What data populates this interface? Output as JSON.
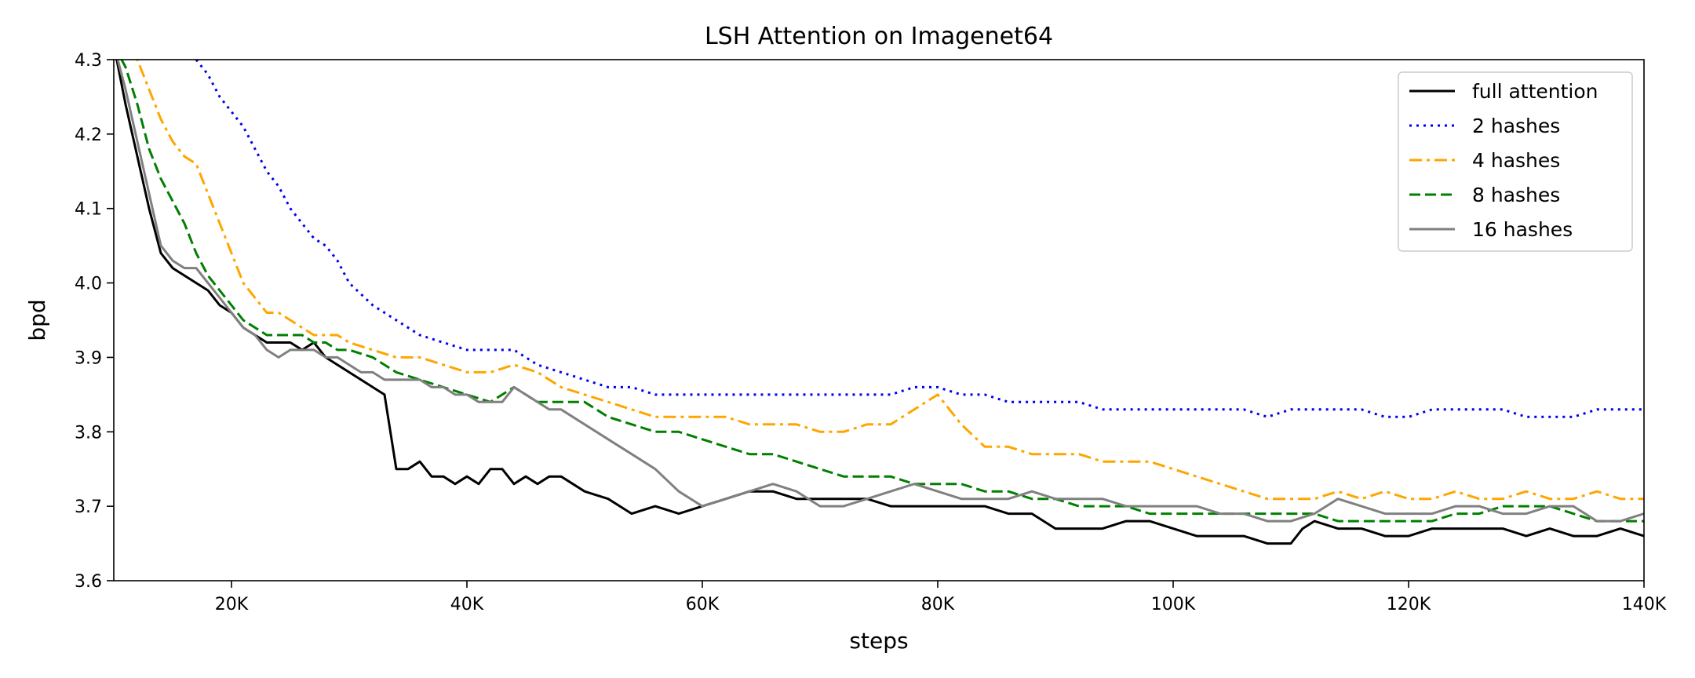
{
  "chart_data": {
    "type": "line",
    "title": "LSH Attention on Imagenet64",
    "xlabel": "steps",
    "ylabel": "bpd",
    "xlim": [
      10000,
      140000
    ],
    "ylim": [
      3.6,
      4.3
    ],
    "xticks": [
      {
        "value": 20000,
        "label": "20K"
      },
      {
        "value": 40000,
        "label": "40K"
      },
      {
        "value": 60000,
        "label": "60K"
      },
      {
        "value": 80000,
        "label": "80K"
      },
      {
        "value": 100000,
        "label": "100K"
      },
      {
        "value": 120000,
        "label": "120K"
      },
      {
        "value": 140000,
        "label": "140K"
      }
    ],
    "yticks": [
      {
        "value": 3.6,
        "label": "3.6"
      },
      {
        "value": 3.7,
        "label": "3.7"
      },
      {
        "value": 3.8,
        "label": "3.8"
      },
      {
        "value": 3.9,
        "label": "3.9"
      },
      {
        "value": 4.0,
        "label": "4.0"
      },
      {
        "value": 4.1,
        "label": "4.1"
      },
      {
        "value": 4.2,
        "label": "4.2"
      },
      {
        "value": 4.3,
        "label": "4.3"
      }
    ],
    "grid": false,
    "legend_position": "top-right",
    "series": [
      {
        "name": "full attention",
        "color": "#000000",
        "style": "solid",
        "x": [
          10000,
          11000,
          12000,
          13000,
          14000,
          15000,
          16000,
          17000,
          18000,
          19000,
          20000,
          21000,
          22000,
          23000,
          24000,
          25000,
          26000,
          27000,
          28000,
          29000,
          30000,
          31000,
          32000,
          33000,
          34000,
          35000,
          36000,
          37000,
          38000,
          39000,
          40000,
          41000,
          42000,
          43000,
          44000,
          45000,
          46000,
          47000,
          48000,
          49000,
          50000,
          52000,
          54000,
          56000,
          58000,
          60000,
          62000,
          64000,
          66000,
          68000,
          70000,
          72000,
          74000,
          76000,
          78000,
          80000,
          82000,
          84000,
          86000,
          88000,
          90000,
          92000,
          94000,
          96000,
          98000,
          100000,
          102000,
          104000,
          106000,
          108000,
          110000,
          111000,
          112000,
          114000,
          116000,
          118000,
          120000,
          122000,
          124000,
          126000,
          128000,
          130000,
          132000,
          134000,
          136000,
          138000,
          140000
        ],
        "values": [
          4.32,
          4.24,
          4.17,
          4.1,
          4.04,
          4.02,
          4.01,
          4.0,
          3.99,
          3.97,
          3.96,
          3.94,
          3.93,
          3.92,
          3.92,
          3.92,
          3.91,
          3.92,
          3.9,
          3.89,
          3.88,
          3.87,
          3.86,
          3.85,
          3.75,
          3.75,
          3.76,
          3.74,
          3.74,
          3.73,
          3.74,
          3.73,
          3.75,
          3.75,
          3.73,
          3.74,
          3.73,
          3.74,
          3.74,
          3.73,
          3.72,
          3.71,
          3.69,
          3.7,
          3.69,
          3.7,
          3.71,
          3.72,
          3.72,
          3.71,
          3.71,
          3.71,
          3.71,
          3.7,
          3.7,
          3.7,
          3.7,
          3.7,
          3.69,
          3.69,
          3.67,
          3.67,
          3.67,
          3.68,
          3.68,
          3.67,
          3.66,
          3.66,
          3.66,
          3.65,
          3.65,
          3.67,
          3.68,
          3.67,
          3.67,
          3.66,
          3.66,
          3.67,
          3.67,
          3.67,
          3.67,
          3.66,
          3.67,
          3.66,
          3.66,
          3.67,
          3.66
        ]
      },
      {
        "name": "2 hashes",
        "color": "#0000ee",
        "style": "dotted",
        "x": [
          17000,
          18000,
          19000,
          20000,
          21000,
          22000,
          23000,
          24000,
          25000,
          26000,
          27000,
          28000,
          29000,
          30000,
          32000,
          34000,
          36000,
          38000,
          40000,
          42000,
          44000,
          46000,
          48000,
          50000,
          52000,
          54000,
          56000,
          58000,
          60000,
          62000,
          64000,
          66000,
          68000,
          70000,
          72000,
          74000,
          76000,
          78000,
          80000,
          82000,
          84000,
          86000,
          88000,
          90000,
          92000,
          94000,
          96000,
          98000,
          100000,
          102000,
          104000,
          106000,
          108000,
          110000,
          112000,
          114000,
          116000,
          118000,
          120000,
          122000,
          124000,
          126000,
          128000,
          130000,
          132000,
          134000,
          136000,
          138000,
          140000
        ],
        "values": [
          4.3,
          4.28,
          4.25,
          4.23,
          4.21,
          4.18,
          4.15,
          4.13,
          4.1,
          4.08,
          4.06,
          4.05,
          4.03,
          4.0,
          3.97,
          3.95,
          3.93,
          3.92,
          3.91,
          3.91,
          3.91,
          3.89,
          3.88,
          3.87,
          3.86,
          3.86,
          3.85,
          3.85,
          3.85,
          3.85,
          3.85,
          3.85,
          3.85,
          3.85,
          3.85,
          3.85,
          3.85,
          3.86,
          3.86,
          3.85,
          3.85,
          3.84,
          3.84,
          3.84,
          3.84,
          3.83,
          3.83,
          3.83,
          3.83,
          3.83,
          3.83,
          3.83,
          3.82,
          3.83,
          3.83,
          3.83,
          3.83,
          3.82,
          3.82,
          3.83,
          3.83,
          3.83,
          3.83,
          3.82,
          3.82,
          3.82,
          3.83,
          3.83,
          3.83
        ]
      },
      {
        "name": "4 hashes",
        "color": "#ffa500",
        "style": "dashdot",
        "x": [
          11000,
          12000,
          13000,
          14000,
          15000,
          16000,
          17000,
          18000,
          19000,
          20000,
          21000,
          22000,
          23000,
          24000,
          25000,
          26000,
          27000,
          28000,
          29000,
          30000,
          32000,
          34000,
          36000,
          38000,
          40000,
          42000,
          44000,
          46000,
          48000,
          50000,
          52000,
          54000,
          56000,
          58000,
          60000,
          62000,
          64000,
          66000,
          68000,
          70000,
          72000,
          74000,
          76000,
          78000,
          80000,
          82000,
          84000,
          86000,
          88000,
          90000,
          92000,
          94000,
          96000,
          98000,
          100000,
          102000,
          104000,
          106000,
          108000,
          110000,
          112000,
          114000,
          116000,
          118000,
          120000,
          122000,
          124000,
          126000,
          128000,
          130000,
          132000,
          134000,
          136000,
          138000,
          140000
        ],
        "values": [
          4.32,
          4.3,
          4.26,
          4.22,
          4.19,
          4.17,
          4.16,
          4.12,
          4.08,
          4.04,
          4.0,
          3.98,
          3.96,
          3.96,
          3.95,
          3.94,
          3.93,
          3.93,
          3.93,
          3.92,
          3.91,
          3.9,
          3.9,
          3.89,
          3.88,
          3.88,
          3.89,
          3.88,
          3.86,
          3.85,
          3.84,
          3.83,
          3.82,
          3.82,
          3.82,
          3.82,
          3.81,
          3.81,
          3.81,
          3.8,
          3.8,
          3.81,
          3.81,
          3.83,
          3.85,
          3.81,
          3.78,
          3.78,
          3.77,
          3.77,
          3.77,
          3.76,
          3.76,
          3.76,
          3.75,
          3.74,
          3.73,
          3.72,
          3.71,
          3.71,
          3.71,
          3.72,
          3.71,
          3.72,
          3.71,
          3.71,
          3.72,
          3.71,
          3.71,
          3.72,
          3.71,
          3.71,
          3.72,
          3.71,
          3.71
        ]
      },
      {
        "name": "8 hashes",
        "color": "#007f00",
        "style": "dashed",
        "x": [
          10000,
          11000,
          12000,
          13000,
          14000,
          15000,
          16000,
          17000,
          18000,
          19000,
          20000,
          21000,
          22000,
          23000,
          24000,
          25000,
          26000,
          27000,
          28000,
          29000,
          30000,
          32000,
          34000,
          36000,
          38000,
          40000,
          42000,
          44000,
          46000,
          48000,
          50000,
          52000,
          54000,
          56000,
          58000,
          60000,
          62000,
          64000,
          66000,
          68000,
          70000,
          72000,
          74000,
          76000,
          78000,
          80000,
          82000,
          84000,
          86000,
          88000,
          90000,
          92000,
          94000,
          96000,
          98000,
          100000,
          102000,
          104000,
          106000,
          108000,
          110000,
          112000,
          114000,
          116000,
          118000,
          120000,
          122000,
          124000,
          126000,
          128000,
          130000,
          132000,
          134000,
          136000,
          138000,
          140000
        ],
        "values": [
          4.32,
          4.29,
          4.24,
          4.18,
          4.14,
          4.11,
          4.08,
          4.04,
          4.01,
          3.99,
          3.97,
          3.95,
          3.94,
          3.93,
          3.93,
          3.93,
          3.93,
          3.92,
          3.92,
          3.91,
          3.91,
          3.9,
          3.88,
          3.87,
          3.86,
          3.85,
          3.84,
          3.86,
          3.84,
          3.84,
          3.84,
          3.82,
          3.81,
          3.8,
          3.8,
          3.79,
          3.78,
          3.77,
          3.77,
          3.76,
          3.75,
          3.74,
          3.74,
          3.74,
          3.73,
          3.73,
          3.73,
          3.72,
          3.72,
          3.71,
          3.71,
          3.7,
          3.7,
          3.7,
          3.69,
          3.69,
          3.69,
          3.69,
          3.69,
          3.69,
          3.69,
          3.69,
          3.68,
          3.68,
          3.68,
          3.68,
          3.68,
          3.69,
          3.69,
          3.7,
          3.7,
          3.7,
          3.69,
          3.68,
          3.68,
          3.68
        ]
      },
      {
        "name": "16 hashes",
        "color": "#808080",
        "style": "solid",
        "x": [
          10000,
          11000,
          12000,
          13000,
          14000,
          15000,
          16000,
          17000,
          18000,
          19000,
          20000,
          21000,
          22000,
          23000,
          24000,
          25000,
          26000,
          27000,
          28000,
          29000,
          30000,
          31000,
          32000,
          33000,
          34000,
          35000,
          36000,
          37000,
          38000,
          39000,
          40000,
          41000,
          42000,
          43000,
          44000,
          45000,
          46000,
          47000,
          48000,
          49000,
          50000,
          52000,
          54000,
          56000,
          58000,
          60000,
          62000,
          64000,
          66000,
          68000,
          70000,
          72000,
          74000,
          76000,
          78000,
          80000,
          82000,
          84000,
          86000,
          88000,
          90000,
          92000,
          94000,
          96000,
          98000,
          100000,
          102000,
          104000,
          106000,
          108000,
          110000,
          112000,
          114000,
          116000,
          118000,
          120000,
          122000,
          124000,
          126000,
          128000,
          130000,
          132000,
          134000,
          136000,
          138000,
          140000
        ],
        "values": [
          4.32,
          4.26,
          4.19,
          4.12,
          4.05,
          4.03,
          4.02,
          4.02,
          4.0,
          3.98,
          3.96,
          3.94,
          3.93,
          3.91,
          3.9,
          3.91,
          3.91,
          3.91,
          3.9,
          3.9,
          3.89,
          3.88,
          3.88,
          3.87,
          3.87,
          3.87,
          3.87,
          3.86,
          3.86,
          3.85,
          3.85,
          3.84,
          3.84,
          3.84,
          3.86,
          3.85,
          3.84,
          3.83,
          3.83,
          3.82,
          3.81,
          3.79,
          3.77,
          3.75,
          3.72,
          3.7,
          3.71,
          3.72,
          3.73,
          3.72,
          3.7,
          3.7,
          3.71,
          3.72,
          3.73,
          3.72,
          3.71,
          3.71,
          3.71,
          3.72,
          3.71,
          3.71,
          3.71,
          3.7,
          3.7,
          3.7,
          3.7,
          3.69,
          3.69,
          3.68,
          3.68,
          3.69,
          3.71,
          3.7,
          3.69,
          3.69,
          3.69,
          3.7,
          3.7,
          3.69,
          3.69,
          3.7,
          3.7,
          3.68,
          3.68,
          3.69
        ]
      }
    ]
  }
}
